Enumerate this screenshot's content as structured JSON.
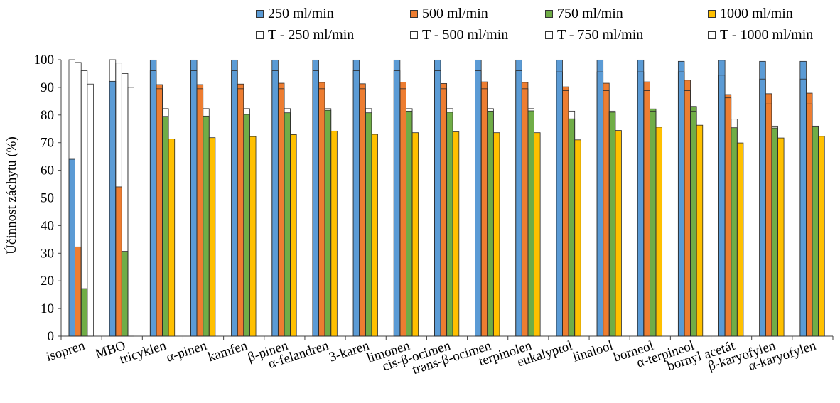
{
  "chart_data": {
    "type": "bar",
    "title": "",
    "xlabel": "",
    "ylabel": "Účinnost záchytu (%)",
    "ylim": [
      0,
      100
    ],
    "yticks": [
      "0",
      "10",
      "20",
      "30",
      "40",
      "50",
      "60",
      "70",
      "80",
      "90",
      "100"
    ],
    "grid": false,
    "legend_position": "top",
    "categories": [
      "isopren",
      "MBO",
      "tricyklen",
      "α-pinen",
      "kamfen",
      "β-pinen",
      "α-felandren",
      "3-karen",
      "limonen",
      "cis-β-ocimen",
      "trans-β-ocimen",
      "terpinolen",
      "eukalyptol",
      "linalool",
      "borneol",
      "α-terpineol",
      "bornyl acetát",
      "β-karyofylen",
      "α-karyofylen"
    ],
    "series": [
      {
        "name": "250 ml/min",
        "color": "#5B9BD5",
        "values": [
          64,
          92.2,
          99.9,
          99.9,
          99.9,
          99.9,
          99.9,
          99.9,
          99.9,
          99.9,
          99.9,
          99.9,
          99.9,
          99.9,
          99.9,
          99.4,
          99.8,
          99.4,
          99.4
        ]
      },
      {
        "name": "500 ml/min",
        "color": "#ED7D31",
        "values": [
          32.3,
          54,
          91,
          91,
          91.2,
          91.5,
          91.8,
          91.3,
          91.9,
          91.4,
          92,
          91.8,
          90.2,
          91.5,
          92,
          92.6,
          87.4,
          87.7,
          87.9
        ]
      },
      {
        "name": "750 ml/min",
        "color": "#70AD47",
        "values": [
          17.2,
          30.7,
          79.5,
          79.6,
          80.2,
          80.8,
          81.7,
          80.8,
          81.4,
          81,
          81.4,
          81.5,
          78.6,
          81,
          82.2,
          83.1,
          75.4,
          75.3,
          75.8
        ]
      },
      {
        "name": "1000 ml/min",
        "color": "#FFC000",
        "values": [
          null,
          null,
          71.3,
          71.8,
          72.2,
          72.9,
          74.2,
          73,
          73.6,
          73.9,
          73.6,
          73.6,
          71,
          74.4,
          75.6,
          76.3,
          69.9,
          71.7,
          72.3
        ]
      },
      {
        "name": "T - 250 ml/min",
        "color": "#FFFFFF",
        "values": [
          100,
          100,
          96,
          96,
          96,
          96,
          96,
          96,
          96,
          96,
          96,
          96,
          95.6,
          95.6,
          95.6,
          95.6,
          94.4,
          93,
          93
        ]
      },
      {
        "name": "T - 500 ml/min",
        "color": "#FFFFFF",
        "values": [
          99,
          98.8,
          89.5,
          89.5,
          89.5,
          89.5,
          89.5,
          89.5,
          89.5,
          89.5,
          89.5,
          89.5,
          88.8,
          88.8,
          88.8,
          88.8,
          86.2,
          84,
          84
        ]
      },
      {
        "name": "T - 750 ml/min",
        "color": "#FFFFFF",
        "values": [
          96,
          95,
          82.3,
          82.3,
          82.3,
          82.3,
          82.3,
          82.3,
          82.3,
          82.3,
          82.3,
          82.3,
          81.4,
          81.4,
          81.4,
          81.4,
          78.5,
          76,
          76
        ]
      },
      {
        "name": "T - 1000 ml/min",
        "color": "#FFFFFF",
        "values": [
          91.2,
          90,
          null,
          null,
          null,
          null,
          null,
          null,
          null,
          null,
          null,
          null,
          null,
          null,
          null,
          null,
          null,
          null,
          null
        ]
      }
    ]
  }
}
